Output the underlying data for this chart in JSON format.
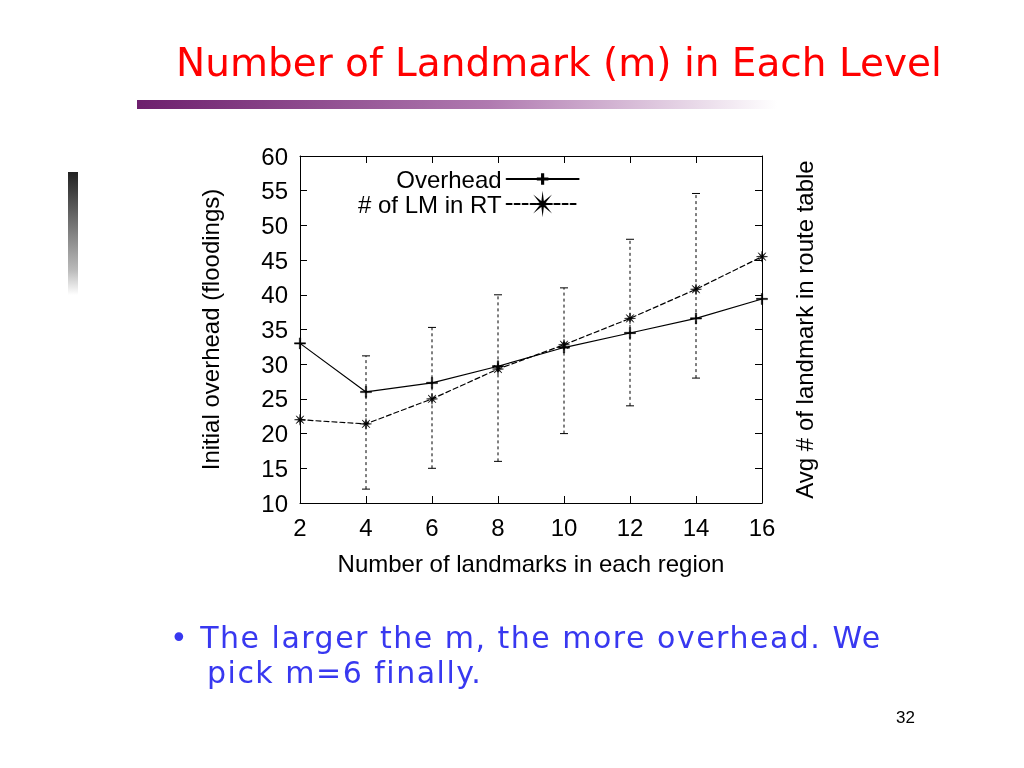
{
  "chart_data": {
    "type": "line",
    "title": "Number of Landmark (m) in Each Level",
    "xlabel": "Number of landmarks in each region",
    "ylabel": "Initial overhead (floodings)",
    "y2label": "Avg # of landmark in route table",
    "x": [
      2,
      4,
      6,
      8,
      10,
      12,
      14,
      16
    ],
    "series": [
      {
        "name": "Overhead",
        "color": "#000000",
        "values": [
          33,
          26,
          27.3,
          29.7,
          32.4,
          34.5,
          36.6,
          39.4
        ],
        "marker": "cross",
        "line_style": "solid"
      },
      {
        "name": "# of LM in RT",
        "color": "#000000",
        "values": [
          22,
          21.4,
          25,
          29.3,
          32.8,
          36.6,
          40.8,
          45.5
        ],
        "errors": [
          null,
          [
            12,
            31.2
          ],
          [
            15,
            35.3
          ],
          [
            16,
            40
          ],
          [
            20,
            41
          ],
          [
            24,
            48
          ],
          [
            28,
            54.6
          ],
          null
        ],
        "marker": "star",
        "line_style": "dashed"
      }
    ],
    "xlim": [
      2,
      16
    ],
    "xticks": [
      2,
      4,
      6,
      8,
      10,
      12,
      14,
      16
    ],
    "ylim": [
      10,
      60
    ],
    "yticks": [
      10,
      15,
      20,
      25,
      30,
      35,
      40,
      45,
      50,
      55,
      60
    ],
    "legend": "top left",
    "annotations": [
      "• The larger the m, the more overhead. We pick m=6 finally.",
      "32"
    ]
  }
}
